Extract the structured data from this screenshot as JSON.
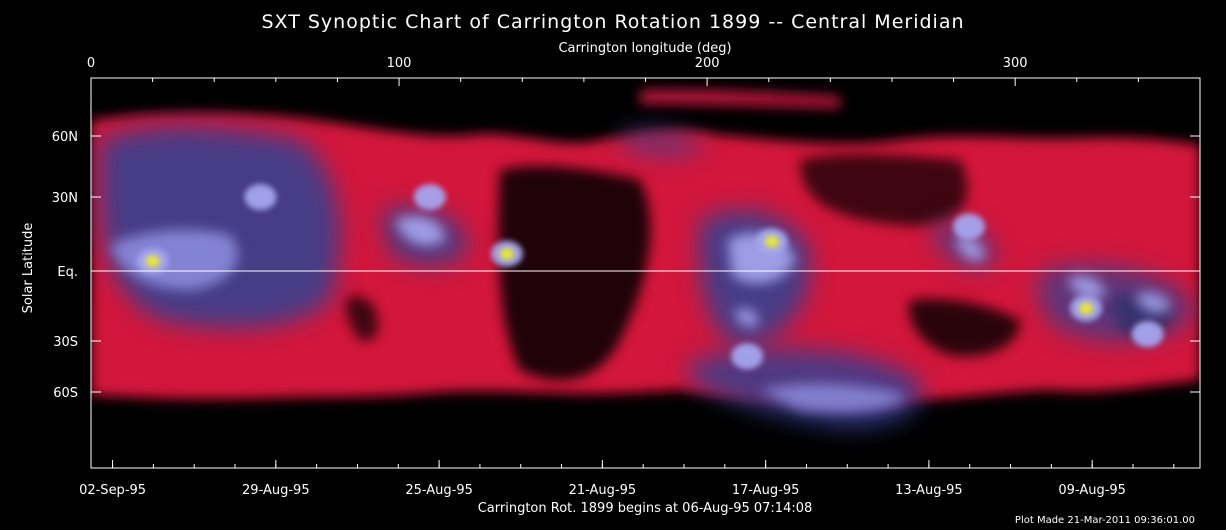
{
  "chart_data": {
    "type": "heatmap",
    "title": "SXT Synoptic Chart of Carrington Rotation 1899 -- Central Meridian",
    "top_axis_label": "Carrington longitude (deg)",
    "top_ticks": [
      {
        "value": 0,
        "label": "0"
      },
      {
        "value": 100,
        "label": "100"
      },
      {
        "value": 200,
        "label": "200"
      },
      {
        "value": 300,
        "label": "300"
      }
    ],
    "xlim": [
      0,
      360
    ],
    "ylabel": "Solar Latitude",
    "lat_ticks": [
      {
        "value": 60,
        "label": "60N"
      },
      {
        "value": 30,
        "label": "30N"
      },
      {
        "value": 0,
        "label": "Eq."
      },
      {
        "value": -30,
        "label": "30S"
      },
      {
        "value": -60,
        "label": "60S"
      }
    ],
    "ylim": [
      -90,
      90
    ],
    "equator_line": true,
    "bottom_ticks": [
      {
        "value": 7,
        "label": "02-Sep-95"
      },
      {
        "value": 60,
        "label": "29-Aug-95"
      },
      {
        "value": 113,
        "label": "25-Aug-95"
      },
      {
        "value": 166,
        "label": "21-Aug-95"
      },
      {
        "value": 219,
        "label": "17-Aug-95"
      },
      {
        "value": 272,
        "label": "13-Aug-95"
      },
      {
        "value": 325,
        "label": "09-Aug-95"
      }
    ],
    "bottom_caption": "Carrington Rot. 1899 begins at 06-Aug-95 07:14:08",
    "footer_note": "Plot Made 21-Mar-2011 09:36:01.00",
    "colors": {
      "background": "#000000",
      "low": "#e01835",
      "mid": "#36418f",
      "high": "#a6a6f0",
      "peak": "#e8e838"
    },
    "bright_regions": [
      {
        "name": "active-region",
        "lon": 20,
        "lat": 4,
        "intensity": "peak"
      },
      {
        "name": "active-region",
        "lon": 135,
        "lat": 7,
        "intensity": "peak"
      },
      {
        "name": "active-region",
        "lon": 221,
        "lat": 12,
        "intensity": "peak"
      },
      {
        "name": "active-region",
        "lon": 213,
        "lat": -39,
        "intensity": "high"
      },
      {
        "name": "active-region",
        "lon": 110,
        "lat": 30,
        "intensity": "high"
      },
      {
        "name": "active-region",
        "lon": 285,
        "lat": 18,
        "intensity": "high"
      },
      {
        "name": "active-region",
        "lon": 323,
        "lat": -16,
        "intensity": "peak"
      },
      {
        "name": "active-region",
        "lon": 343,
        "lat": -27,
        "intensity": "high"
      },
      {
        "name": "active-region",
        "lon": 55,
        "lat": 30,
        "intensity": "high"
      }
    ]
  }
}
